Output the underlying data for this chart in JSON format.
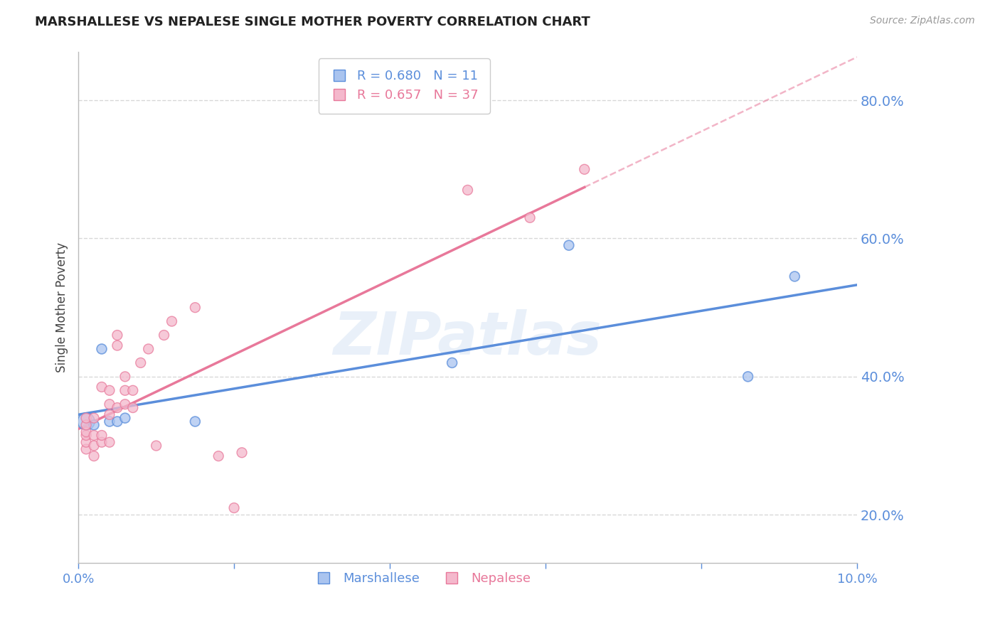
{
  "title": "MARSHALLESE VS NEPALESE SINGLE MOTHER POVERTY CORRELATION CHART",
  "source": "Source: ZipAtlas.com",
  "ylabel": "Single Mother Poverty",
  "watermark": "ZIPatlas",
  "marshallese": {
    "label": "Marshallese",
    "R": 0.68,
    "N": 11,
    "color": "#5b8edb",
    "color_fill": "#aac4ef",
    "x": [
      0.001,
      0.002,
      0.003,
      0.004,
      0.005,
      0.006,
      0.015,
      0.048,
      0.063,
      0.086,
      0.092
    ],
    "y": [
      0.335,
      0.33,
      0.44,
      0.335,
      0.335,
      0.34,
      0.335,
      0.42,
      0.59,
      0.4,
      0.545
    ],
    "sizes": [
      300,
      100,
      100,
      100,
      100,
      100,
      100,
      100,
      100,
      100,
      100
    ]
  },
  "nepalese": {
    "label": "Nepalese",
    "R": 0.657,
    "N": 37,
    "color": "#e8789a",
    "color_fill": "#f4b8cc",
    "x": [
      0.001,
      0.001,
      0.001,
      0.001,
      0.001,
      0.001,
      0.002,
      0.002,
      0.002,
      0.002,
      0.003,
      0.003,
      0.003,
      0.004,
      0.004,
      0.004,
      0.004,
      0.005,
      0.005,
      0.005,
      0.006,
      0.006,
      0.006,
      0.007,
      0.007,
      0.008,
      0.009,
      0.01,
      0.011,
      0.012,
      0.015,
      0.018,
      0.02,
      0.021,
      0.05,
      0.058,
      0.065
    ],
    "y": [
      0.295,
      0.305,
      0.315,
      0.32,
      0.33,
      0.34,
      0.285,
      0.3,
      0.315,
      0.34,
      0.305,
      0.315,
      0.385,
      0.305,
      0.345,
      0.36,
      0.38,
      0.355,
      0.445,
      0.46,
      0.36,
      0.38,
      0.4,
      0.355,
      0.38,
      0.42,
      0.44,
      0.3,
      0.46,
      0.48,
      0.5,
      0.285,
      0.21,
      0.29,
      0.67,
      0.63,
      0.7
    ],
    "sizes": [
      100,
      100,
      100,
      100,
      100,
      100,
      100,
      100,
      100,
      100,
      100,
      100,
      100,
      100,
      100,
      100,
      100,
      100,
      100,
      100,
      100,
      100,
      100,
      100,
      100,
      100,
      100,
      100,
      100,
      100,
      100,
      100,
      100,
      100,
      100,
      100,
      100
    ]
  },
  "xlim": [
    0.0,
    0.1
  ],
  "ylim": [
    0.13,
    0.87
  ],
  "yticks": [
    0.2,
    0.4,
    0.6,
    0.8
  ],
  "xtick_positions": [
    0.0,
    0.02,
    0.04,
    0.06,
    0.08,
    0.1
  ],
  "xtick_labels": [
    "0.0%",
    "",
    "",
    "",
    "",
    "10.0%"
  ],
  "grid_color": "#d8d8d8",
  "bg_color": "#ffffff",
  "tick_color": "#5b8edb",
  "axis_color": "#bbbbbb"
}
